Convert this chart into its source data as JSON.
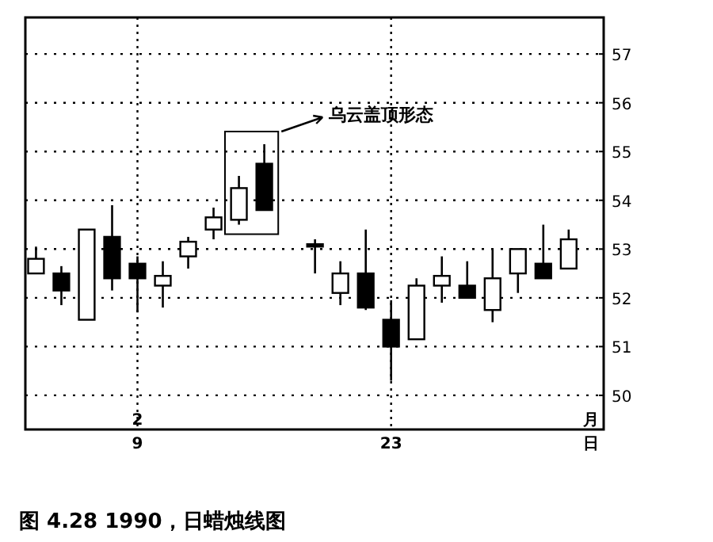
{
  "chart_data": {
    "type": "candlestick",
    "categories": [
      null,
      null,
      null,
      null,
      "9",
      null,
      null,
      null,
      null,
      null,
      null,
      null,
      null,
      null,
      "23",
      null,
      null,
      null,
      null,
      null,
      null,
      null
    ],
    "ohlc": [
      [
        52.5,
        53.05,
        52.5,
        52.8
      ],
      [
        52.5,
        52.65,
        51.85,
        52.15
      ],
      [
        51.55,
        53.4,
        51.55,
        53.4
      ],
      [
        53.25,
        53.9,
        52.15,
        52.4
      ],
      [
        52.7,
        52.85,
        51.7,
        52.4
      ],
      [
        52.25,
        52.75,
        51.8,
        52.45
      ],
      [
        52.85,
        53.25,
        52.6,
        53.15
      ],
      [
        53.4,
        53.85,
        53.2,
        53.65
      ],
      [
        53.6,
        54.5,
        53.5,
        54.25
      ],
      [
        54.75,
        55.15,
        53.8,
        53.8
      ],
      null,
      [
        53.1,
        53.2,
        52.5,
        53.05
      ],
      [
        52.1,
        52.75,
        51.85,
        52.5
      ],
      [
        52.5,
        53.4,
        51.75,
        51.8
      ],
      [
        51.55,
        51.95,
        50.3,
        51.0
      ],
      [
        51.15,
        52.4,
        51.15,
        52.25
      ],
      [
        52.25,
        52.85,
        51.9,
        52.45
      ],
      [
        52.25,
        52.75,
        52.0,
        52.0
      ],
      [
        51.75,
        53.0,
        51.5,
        52.4
      ],
      [
        52.5,
        53.0,
        52.1,
        53.0
      ],
      [
        52.7,
        53.5,
        52.4,
        52.4
      ],
      [
        52.6,
        53.4,
        52.6,
        53.2
      ]
    ],
    "color": "#000000",
    "ylim": [
      49.3,
      57.75
    ],
    "yticks": [
      50,
      51,
      52,
      53,
      54,
      55,
      56,
      57
    ],
    "grid": true,
    "annotations": [
      "乌云盖顶形态",
      "2",
      "月",
      "日",
      "图 4.28 1990，日蜡烛线图"
    ]
  }
}
